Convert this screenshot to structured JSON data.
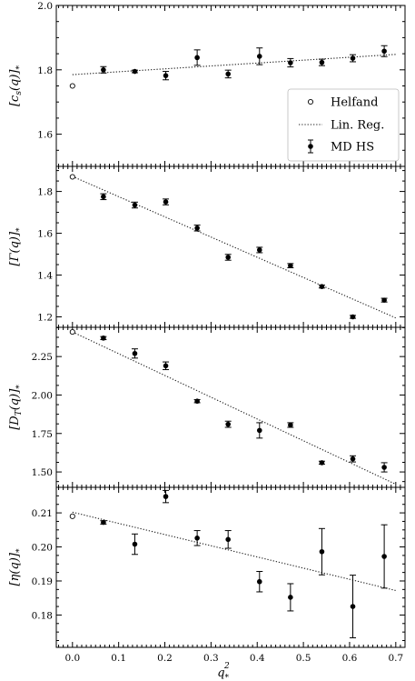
{
  "x_axis": {
    "label": "q*²",
    "label_main": "q",
    "label_sub": "*",
    "label_sup": "2",
    "range": [
      -0.035,
      0.72
    ],
    "ticks": [
      0.0,
      0.1,
      0.2,
      0.3,
      0.4,
      0.5,
      0.6,
      0.7
    ],
    "tick_labels": [
      "0.0",
      "0.1",
      "0.2",
      "0.3",
      "0.4",
      "0.5",
      "0.6",
      "0.7"
    ]
  },
  "legend": {
    "placement": "panel-1 lower-right",
    "entries": [
      {
        "label": "Helfand",
        "marker": "open-circle"
      },
      {
        "label": "Lin. Reg.",
        "marker": "dotted-line"
      },
      {
        "label": "MD HS",
        "marker": "filled-circle-errorbar"
      }
    ]
  },
  "chart_data": [
    {
      "type": "scatter",
      "ylabel": "[c_s(q)]_*",
      "ylim": [
        1.5,
        2.0
      ],
      "yticks": [
        1.6,
        1.8,
        2.0
      ],
      "ytick_labels": [
        "1.6",
        "1.8",
        "2.0"
      ],
      "helfand": {
        "x": 0.0,
        "y": 1.75
      },
      "linreg": {
        "x": [
          0.0,
          0.7
        ],
        "y": [
          1.785,
          1.848
        ]
      },
      "md": {
        "x": [
          0.067,
          0.135,
          0.202,
          0.27,
          0.337,
          0.405,
          0.472,
          0.54,
          0.607,
          0.675
        ],
        "y": [
          1.8,
          1.795,
          1.782,
          1.838,
          1.787,
          1.842,
          1.822,
          1.823,
          1.836,
          1.858
        ],
        "err": [
          0.01,
          0.004,
          0.013,
          0.024,
          0.012,
          0.026,
          0.013,
          0.01,
          0.011,
          0.017
        ]
      }
    },
    {
      "type": "scatter",
      "ylabel": "[Γ(q)]_*",
      "ylim": [
        1.15,
        1.92
      ],
      "yticks": [
        1.2,
        1.4,
        1.6,
        1.8
      ],
      "ytick_labels": [
        "1.2",
        "1.4",
        "1.6",
        "1.8"
      ],
      "helfand": {
        "x": 0.0,
        "y": 1.87
      },
      "linreg": {
        "x": [
          0.0,
          0.7
        ],
        "y": [
          1.872,
          1.195
        ]
      },
      "md": {
        "x": [
          0.067,
          0.135,
          0.202,
          0.27,
          0.337,
          0.405,
          0.472,
          0.54,
          0.607,
          0.675
        ],
        "y": [
          1.775,
          1.735,
          1.75,
          1.625,
          1.485,
          1.52,
          1.445,
          1.345,
          1.2,
          1.28
        ],
        "err": [
          0.014,
          0.014,
          0.014,
          0.014,
          0.014,
          0.013,
          0.01,
          0.007,
          0.007,
          0.009
        ]
      }
    },
    {
      "type": "scatter",
      "ylabel": "[D_T(q)]_*",
      "ylim": [
        1.4,
        2.44
      ],
      "yticks": [
        1.5,
        1.75,
        2.0,
        2.25
      ],
      "ytick_labels": [
        "1.50",
        "1.75",
        "2.00",
        "2.25"
      ],
      "helfand": {
        "x": 0.0,
        "y": 2.41
      },
      "linreg": {
        "x": [
          0.0,
          0.7
        ],
        "y": [
          2.41,
          1.42
        ]
      },
      "md": {
        "x": [
          0.067,
          0.135,
          0.202,
          0.27,
          0.337,
          0.405,
          0.472,
          0.54,
          0.607,
          0.675
        ],
        "y": [
          2.37,
          2.27,
          2.19,
          1.96,
          1.81,
          1.77,
          1.805,
          1.56,
          1.585,
          1.53
        ],
        "err": [
          0.01,
          0.03,
          0.025,
          0.01,
          0.02,
          0.05,
          0.015,
          0.01,
          0.02,
          0.03
        ]
      }
    },
    {
      "type": "scatter",
      "ylabel": "[η(q)]_*",
      "ylim": [
        0.1705,
        0.2175
      ],
      "yticks": [
        0.18,
        0.19,
        0.2,
        0.21
      ],
      "ytick_labels": [
        "0.18",
        "0.19",
        "0.20",
        "0.21"
      ],
      "helfand": {
        "x": 0.0,
        "y": 0.209
      },
      "linreg": {
        "x": [
          0.0,
          0.7
        ],
        "y": [
          0.2102,
          0.1872
        ]
      },
      "md": {
        "x": [
          0.067,
          0.135,
          0.202,
          0.27,
          0.337,
          0.405,
          0.472,
          0.54,
          0.607,
          0.675
        ],
        "y": [
          0.2072,
          0.2008,
          0.2148,
          0.2026,
          0.2022,
          0.1898,
          0.1852,
          0.1986,
          0.1825,
          0.1972
        ],
        "err": [
          0.0005,
          0.003,
          0.0018,
          0.0022,
          0.0026,
          0.003,
          0.004,
          0.0068,
          0.0092,
          0.0093
        ]
      }
    }
  ]
}
